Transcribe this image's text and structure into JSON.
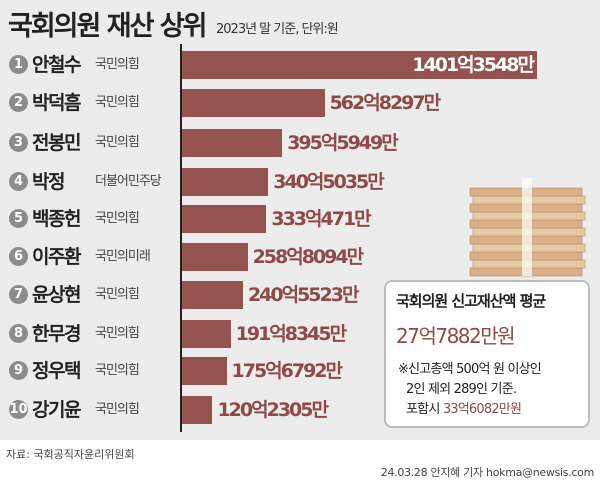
{
  "title": "국회의원 재산 상위",
  "subtitle": "2023년 말 기준, 단위:원",
  "chart_data": {
    "type": "bar",
    "orientation": "horizontal",
    "unit": "억원",
    "categories": [
      "안철수",
      "박덕흠",
      "전봉민",
      "박정",
      "백종헌",
      "이주환",
      "윤상현",
      "한무경",
      "정우택",
      "강기윤"
    ],
    "ranks": [
      "1",
      "2",
      "3",
      "4",
      "5",
      "6",
      "7",
      "8",
      "9",
      "10"
    ],
    "parties": [
      "국민의힘",
      "국민의힘",
      "국민의힘",
      "더불어민주당",
      "국민의힘",
      "국민의미래",
      "국민의힘",
      "국민의힘",
      "국민의힘",
      "국민의힘"
    ],
    "values": [
      1401.3548,
      562.8297,
      395.5949,
      340.5035,
      333.0471,
      258.8094,
      240.5523,
      191.8345,
      175.6792,
      120.2305
    ],
    "labels": [
      "1401억3548만",
      "562억8297만",
      "395억5949만",
      "340억5035만",
      "333억471만",
      "258억8094만",
      "240억5523만",
      "191억8345만",
      "175억6792만",
      "120억2305만"
    ],
    "bar_color": "#95534f",
    "grid": false
  },
  "note": {
    "heading": "국회의원 신고재산액 평균",
    "average": "27억7882만원",
    "line1": "※신고총액 500억 원 이상인",
    "line2": "2인 제외 289인 기준.",
    "line3_prefix": "포함시 ",
    "line3_value": "33억6082만원"
  },
  "source": "자료: 국회공직자윤리위원회",
  "credit": "24.03.28 안지혜 기자 hokma@newsis.com"
}
